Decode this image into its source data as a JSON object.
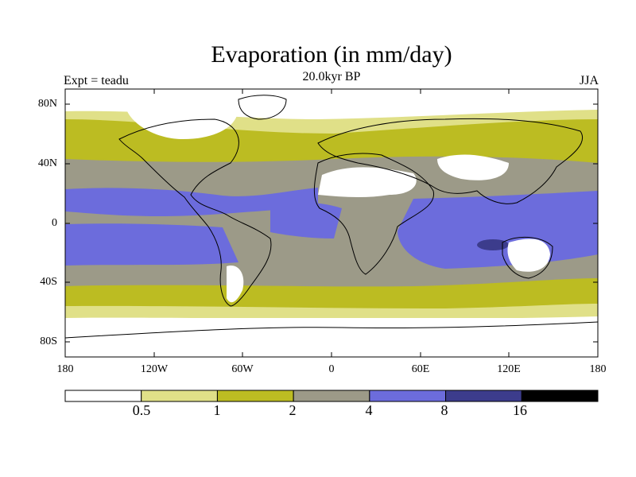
{
  "title": "Evaporation (in mm/day)",
  "subtitle": "20.0kyr BP",
  "experiment_label": "Expt = teadu",
  "season_label": "JJA",
  "lat_ticks": [
    "80N",
    "40N",
    "0",
    "40S",
    "80S"
  ],
  "lon_ticks": [
    "180",
    "120W",
    "60W",
    "0",
    "60E",
    "120E",
    "180"
  ],
  "colorbar": {
    "colors": [
      "#ffffff",
      "#e0e088",
      "#bcbc22",
      "#9c9a88",
      "#6c6cdc",
      "#3c3c8c",
      "#000000"
    ],
    "labels": [
      "0.5",
      "1",
      "2",
      "4",
      "8",
      "16"
    ]
  }
}
